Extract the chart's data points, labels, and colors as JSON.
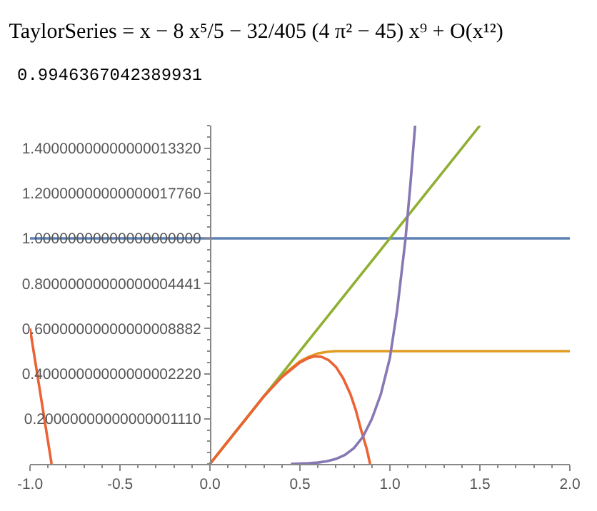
{
  "chart_data": {
    "type": "line",
    "title": "TaylorSeries = x − 8 x⁵/5 − 32/405 (4 π² − 45) x⁹ + O(x¹²)",
    "subtitle": "0.9946367042389931",
    "xlim": [
      -1,
      2
    ],
    "ylim": [
      0,
      1.5
    ],
    "xticks": [
      {
        "value": -1,
        "label": "-1.0"
      },
      {
        "value": -0.5,
        "label": "-0.5"
      },
      {
        "value": 0,
        "label": "0.0"
      },
      {
        "value": 0.5,
        "label": "0.5"
      },
      {
        "value": 1,
        "label": "1.0"
      },
      {
        "value": 1.5,
        "label": "1.5"
      },
      {
        "value": 2,
        "label": "2.0"
      }
    ],
    "yticks": [
      {
        "value": 0.2,
        "label": "0.20000000000000001110"
      },
      {
        "value": 0.4,
        "label": "0.40000000000000002220"
      },
      {
        "value": 0.6,
        "label": "0.60000000000000008882"
      },
      {
        "value": 0.8,
        "label": "0.80000000000000004441"
      },
      {
        "value": 1.0,
        "label": "1.00000000000000000000"
      },
      {
        "value": 1.2,
        "label": "1.20000000000000017760"
      },
      {
        "value": 1.4,
        "label": "1.40000000000000013320"
      }
    ],
    "series": [
      {
        "color": "#5e81b5",
        "x": [
          -1,
          2
        ],
        "values": [
          1,
          1
        ]
      },
      {
        "color": "#e19c24",
        "x": [
          0,
          0.1,
          0.2,
          0.3,
          0.4,
          0.5,
          0.55,
          0.6,
          0.65,
          0.7,
          0.8,
          1.0,
          1.5,
          2.0
        ],
        "values": [
          0,
          0.1,
          0.2,
          0.3,
          0.39,
          0.455,
          0.475,
          0.49,
          0.497,
          0.5,
          0.5,
          0.5,
          0.5,
          0.5
        ]
      },
      {
        "color": "#8fb032",
        "x": [
          0,
          1.5
        ],
        "values": [
          0,
          1.5
        ]
      },
      {
        "color": "#eb6235",
        "x": [
          -1,
          -0.88
        ],
        "values": [
          0.6,
          0
        ]
      },
      {
        "color": "#eb6235",
        "x": [
          0,
          0.1,
          0.2,
          0.3,
          0.4,
          0.5,
          0.55,
          0.58,
          0.62,
          0.66,
          0.7,
          0.74,
          0.78,
          0.81,
          0.84,
          0.87,
          0.89
        ],
        "values": [
          0,
          0.1,
          0.2,
          0.3,
          0.385,
          0.45,
          0.47,
          0.477,
          0.475,
          0.46,
          0.43,
          0.38,
          0.31,
          0.24,
          0.15,
          0.07,
          0
        ]
      },
      {
        "color": "#8778b3",
        "x": [
          0.45,
          0.55,
          0.6,
          0.65,
          0.7,
          0.75,
          0.8,
          0.85,
          0.9,
          0.95,
          1.0,
          1.04,
          1.087,
          1.115,
          1.14
        ],
        "values": [
          0,
          0.003,
          0.006,
          0.012,
          0.022,
          0.04,
          0.07,
          0.12,
          0.2,
          0.31,
          0.47,
          0.68,
          1.0,
          1.25,
          1.5
        ]
      }
    ]
  }
}
